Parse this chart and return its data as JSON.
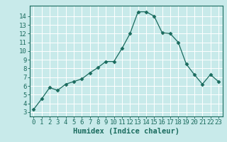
{
  "x": [
    0,
    1,
    2,
    3,
    4,
    5,
    6,
    7,
    8,
    9,
    10,
    11,
    12,
    13,
    14,
    15,
    16,
    17,
    18,
    19,
    20,
    21,
    22,
    23
  ],
  "y": [
    3.3,
    4.5,
    5.8,
    5.5,
    6.2,
    6.5,
    6.8,
    7.5,
    8.1,
    8.8,
    8.8,
    10.3,
    12.0,
    14.5,
    14.5,
    14.0,
    12.1,
    12.0,
    11.0,
    8.5,
    7.3,
    6.2,
    7.3,
    6.5
  ],
  "line_color": "#1a6b5e",
  "marker": "D",
  "marker_size": 2.5,
  "bg_color": "#c8eaea",
  "grid_color": "#ffffff",
  "xlabel": "Humidex (Indice chaleur)",
  "xlim": [
    -0.5,
    23.5
  ],
  "ylim": [
    2.5,
    15.2
  ],
  "yticks": [
    3,
    4,
    5,
    6,
    7,
    8,
    9,
    10,
    11,
    12,
    13,
    14
  ],
  "xticks": [
    0,
    1,
    2,
    3,
    4,
    5,
    6,
    7,
    8,
    9,
    10,
    11,
    12,
    13,
    14,
    15,
    16,
    17,
    18,
    19,
    20,
    21,
    22,
    23
  ],
  "tick_label_color": "#1a6b5e",
  "axis_color": "#1a6b5e",
  "label_fontsize": 7.5,
  "tick_fontsize": 6.5
}
